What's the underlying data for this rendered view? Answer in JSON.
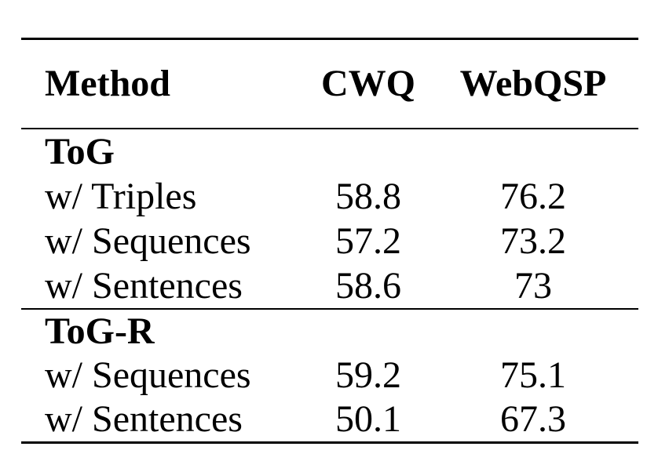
{
  "colors": {
    "text": "#000000",
    "background": "#ffffff",
    "rule": "#000000"
  },
  "table": {
    "columns": {
      "method": "Method",
      "cwq": "CWQ",
      "webqsp": "WebQSP"
    },
    "sections": [
      {
        "group_label": "ToG",
        "rows": [
          {
            "method": "w/ Triples",
            "cwq": "58.8",
            "webqsp": "76.2"
          },
          {
            "method": "w/ Sequences",
            "cwq": "57.2",
            "webqsp": "73.2"
          },
          {
            "method": "w/ Sentences",
            "cwq": "58.6",
            "webqsp": "73"
          }
        ]
      },
      {
        "group_label": "ToG-R",
        "rows": [
          {
            "method": "w/ Sequences",
            "cwq": "59.2",
            "webqsp": "75.1"
          },
          {
            "method": "w/ Sentences",
            "cwq": "50.1",
            "webqsp": "67.3"
          }
        ]
      }
    ]
  },
  "chart_data": {
    "type": "table",
    "title": "",
    "columns": [
      "Method",
      "CWQ",
      "WebQSP"
    ],
    "rows": [
      [
        "ToG",
        null,
        null
      ],
      [
        "w/ Triples",
        58.8,
        76.2
      ],
      [
        "w/ Sequences",
        57.2,
        73.2
      ],
      [
        "w/ Sentences",
        58.6,
        73
      ],
      [
        "ToG-R",
        null,
        null
      ],
      [
        "w/ Sequences",
        59.2,
        75.1
      ],
      [
        "w/ Sentences",
        50.1,
        67.3
      ]
    ]
  }
}
